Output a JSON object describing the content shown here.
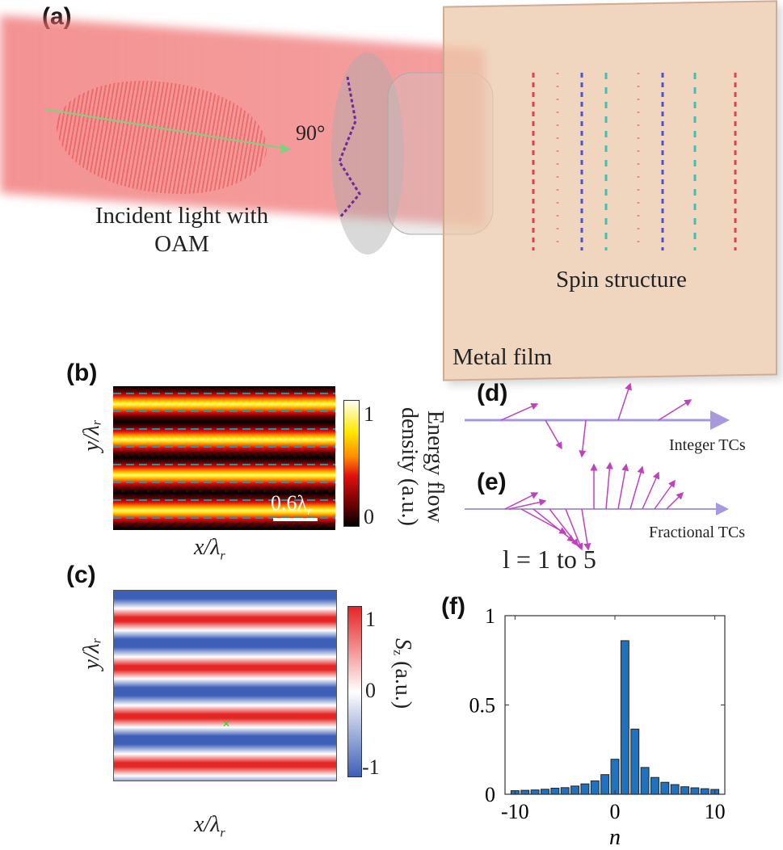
{
  "panels": {
    "a": "(a)",
    "b": "(b)",
    "c": "(c)",
    "d": "(d)",
    "e": "(e)",
    "f": "(f)"
  },
  "panel_a": {
    "angle": "90°",
    "incident_line1": "Incident light with",
    "incident_line2": "OAM",
    "spin": "Spin structure",
    "film": "Metal film"
  },
  "panel_b": {
    "cbar_label": "Energy flow density (a.u.)",
    "cbar_max": "1",
    "cbar_min": "0",
    "scale_bar": "0.6λ",
    "scale_sub": "r",
    "ylabel": "y/λ",
    "xlabel": "x/λ",
    "sub": "r"
  },
  "panel_c": {
    "cbar_label": "S",
    "cbar_label_sub": "z",
    "cbar_label_rest": " (a.u.)",
    "cbar_max": "1",
    "cbar_mid": "0",
    "cbar_min": "-1",
    "ylabel": "y/λ",
    "xlabel": "x/λ",
    "sub": "r"
  },
  "panel_d": {
    "label": "Integer TCs"
  },
  "panel_e": {
    "label": "Fractional TCs",
    "range": "l = 1 to 5"
  },
  "colors": {
    "bar": "#1f72bd",
    "arrow": "#c040c0",
    "axis_line": "#a898dd"
  },
  "chart_data": {
    "type": "bar",
    "title": "",
    "xlabel": "n",
    "ylabel": "",
    "x": [
      -10,
      -9,
      -8,
      -7,
      -6,
      -5,
      -4,
      -3,
      -2,
      -1,
      0,
      1,
      2,
      3,
      4,
      5,
      6,
      7,
      8,
      9,
      10
    ],
    "values": [
      0.02,
      0.022,
      0.024,
      0.028,
      0.034,
      0.037,
      0.046,
      0.058,
      0.075,
      0.11,
      0.196,
      0.86,
      0.365,
      0.15,
      0.094,
      0.067,
      0.054,
      0.042,
      0.036,
      0.031,
      0.027
    ],
    "xlim": [
      -11,
      11
    ],
    "ylim": [
      0,
      1
    ],
    "xticks": [
      "-10",
      "0",
      "10"
    ],
    "yticks": [
      "0",
      "0.5",
      "1"
    ]
  }
}
